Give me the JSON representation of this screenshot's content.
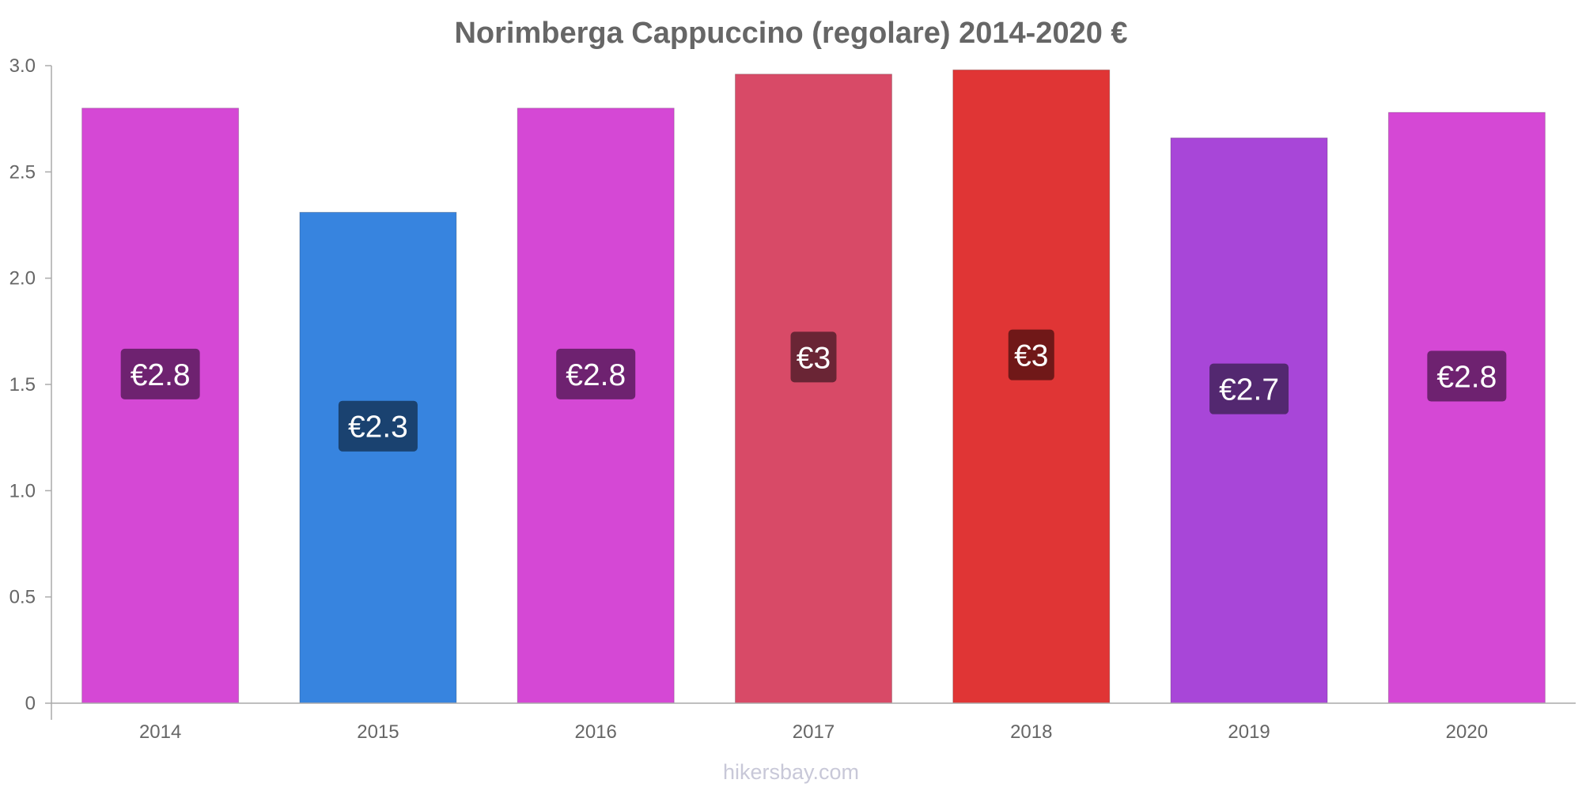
{
  "chart_data": {
    "type": "bar",
    "title": "Norimberga Cappuccino (regolare) 2014-2020 €",
    "xlabel": "",
    "ylabel": "",
    "ylim": [
      0,
      3.0
    ],
    "yticks": [
      "0",
      "0.5",
      "1.0",
      "1.5",
      "2.0",
      "2.5",
      "3.0"
    ],
    "categories": [
      "2014",
      "2015",
      "2016",
      "2017",
      "2018",
      "2019",
      "2020"
    ],
    "values": [
      2.8,
      2.31,
      2.8,
      2.96,
      2.98,
      2.66,
      2.78
    ],
    "data_labels": [
      "€2.8",
      "€2.3",
      "€2.8",
      "€3",
      "€3",
      "€2.7",
      "€2.8"
    ],
    "colors": [
      "#d548d5",
      "#3784df",
      "#d548d5",
      "#d84a67",
      "#e03535",
      "#a846d8",
      "#d548d5"
    ],
    "label_colors": [
      "#6e2270",
      "#1a4270",
      "#6e2270",
      "#6a2535",
      "#701818",
      "#532870",
      "#6e2270"
    ],
    "grid": false,
    "legend": "none"
  },
  "watermark": "hikersbay.com"
}
